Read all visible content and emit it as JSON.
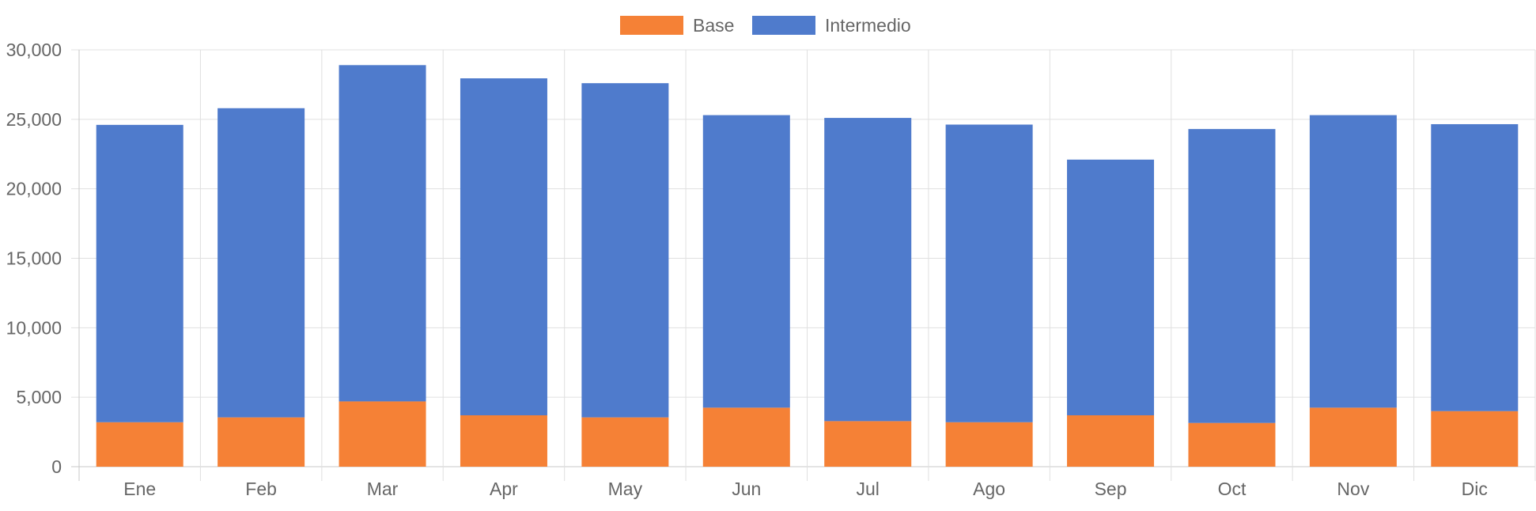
{
  "chart_data": {
    "type": "bar",
    "stacked": true,
    "categories": [
      "Ene",
      "Feb",
      "Mar",
      "Apr",
      "May",
      "Jun",
      "Jul",
      "Ago",
      "Sep",
      "Oct",
      "Nov",
      "Dic"
    ],
    "series": [
      {
        "name": "Base",
        "color": "#f58136",
        "values": [
          3200,
          3550,
          4700,
          3700,
          3550,
          4250,
          3280,
          3200,
          3700,
          3150,
          4250,
          4000
        ]
      },
      {
        "name": "Intermedio",
        "color": "#4f7bcc",
        "values": [
          21400,
          22250,
          24200,
          24250,
          24050,
          21050,
          21820,
          21420,
          18400,
          21150,
          21050,
          20650
        ]
      }
    ],
    "ylim": [
      0,
      30000
    ],
    "yticks": [
      0,
      5000,
      10000,
      15000,
      20000,
      25000,
      30000
    ],
    "ytick_labels": [
      "0",
      "5,000",
      "10,000",
      "15,000",
      "20,000",
      "25,000",
      "30,000"
    ],
    "grid": true,
    "legend_position": "top-center"
  }
}
